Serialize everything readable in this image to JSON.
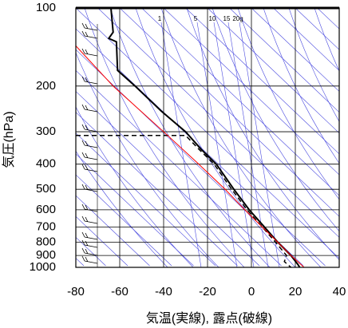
{
  "chart_data": {
    "type": "skewt",
    "xlabel": "気温(実線), 露点(破線)",
    "ylabel": "気圧(hPa)",
    "xlim": [
      -80,
      40
    ],
    "xticks": [
      -80,
      -60,
      -40,
      -20,
      0,
      20,
      40
    ],
    "ylim": [
      1000,
      100
    ],
    "yticks": [
      100,
      200,
      300,
      400,
      500,
      600,
      700,
      800,
      900,
      1000
    ],
    "log_y": true,
    "grid": true,
    "mixing_ratio_labels": [
      "1",
      "5",
      "10",
      "15",
      "20g"
    ],
    "series": [
      {
        "color": "#000000",
        "dash": false,
        "width": 2,
        "pressure": [
          100,
          124,
          131,
          135,
          174,
          200,
          250,
          300,
          350,
          400,
          500,
          600,
          700,
          800,
          900,
          970,
          1000
        ],
        "values": [
          -64,
          -63,
          -65,
          -61.5,
          -61,
          -53,
          -41,
          -30,
          -23,
          -16,
          -8,
          -1,
          6,
          12,
          18,
          21,
          22
        ]
      },
      {
        "color": "#000000",
        "dash": true,
        "width": 1.5,
        "pressure": [
          310,
          310,
          350,
          400,
          500,
          600,
          700,
          800,
          900,
          950,
          1000
        ],
        "values": [
          -80,
          -30,
          -24,
          -17,
          -9,
          -2,
          5,
          11,
          16,
          15,
          18
        ]
      },
      {
        "color": "#ff0000",
        "dash": false,
        "width": 1,
        "pressure": [
          140,
          200,
          300,
          400,
          500,
          600,
          700,
          800,
          900,
          1000
        ],
        "values": [
          -80,
          -63,
          -40,
          -24,
          -12,
          -3,
          5,
          12,
          18,
          24
        ]
      }
    ]
  }
}
